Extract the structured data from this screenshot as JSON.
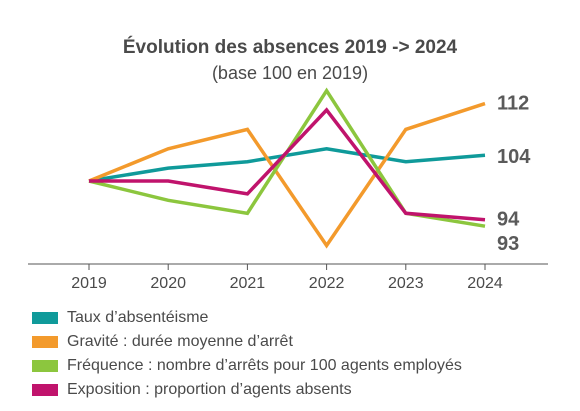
{
  "chart_data": {
    "type": "line",
    "title": "Évolution des absences 2019 -> 2024",
    "subtitle": "(base 100 en 2019)",
    "xlabel": "",
    "ylabel": "",
    "x": [
      "2019",
      "2020",
      "2021",
      "2022",
      "2023",
      "2024"
    ],
    "ylim": [
      84,
      120
    ],
    "grid": false,
    "legend_position": "bottom",
    "series": [
      {
        "name": "Taux d’absentéisme",
        "color": "#0f9a9a",
        "values": [
          100,
          102,
          103,
          105,
          103,
          104
        ],
        "end_label": "104"
      },
      {
        "name": "Gravité : durée moyenne d’arrêt",
        "color": "#f39a2c",
        "values": [
          100,
          105,
          108,
          90,
          108,
          112
        ],
        "end_label": "112"
      },
      {
        "name": "Fréquence : nombre d’arrêts pour 100 agents employés",
        "color": "#8cc63e",
        "values": [
          100,
          97,
          95,
          114,
          95,
          93
        ],
        "end_label": "93"
      },
      {
        "name": "Exposition : proportion d’agents absents",
        "color": "#c0136c",
        "values": [
          100,
          100,
          98,
          111,
          95,
          94
        ],
        "end_label": "94"
      }
    ]
  }
}
